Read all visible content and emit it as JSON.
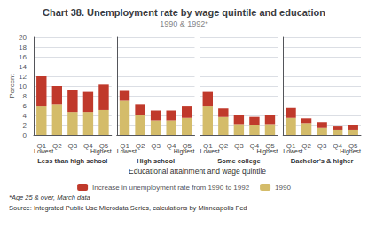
{
  "title": "Chart 38. Unemployment rate by wage quintile and education",
  "subtitle": "1990 & 1992*",
  "xlabel": "Educational attainment and wage quintile",
  "ylabel": "Percent",
  "legend": "bottom",
  "annotations": [
    "*Age 25 & over, March data",
    "Source: Integrated Public Use Microdata Series, calculations by Minneapolis Fed"
  ],
  "chart_data": [
    {
      "type": "bar",
      "stacked": true,
      "title": "Less than high school",
      "categories": [
        "Q1",
        "Q2",
        "Q3",
        "Q4",
        "Q5"
      ],
      "series": [
        {
          "name": "1990",
          "color": "#d4bc6a",
          "values": [
            5.8,
            6.3,
            4.7,
            4.7,
            5.1
          ]
        },
        {
          "name": "Increase in unemployment rate from 1990 to 1992",
          "color": "#c0392b",
          "values": [
            6.2,
            3.7,
            4.5,
            4.1,
            5.2
          ]
        }
      ],
      "ylim": [
        0,
        20
      ],
      "yticks": [
        0,
        2,
        4,
        6,
        8,
        10,
        12,
        14,
        16,
        18,
        20
      ],
      "grid": true,
      "annotations": [
        "Lowest",
        "Highest"
      ]
    },
    {
      "type": "bar",
      "stacked": true,
      "title": "High school",
      "categories": [
        "Q1",
        "Q2",
        "Q3",
        "Q4",
        "Q5"
      ],
      "series": [
        {
          "name": "1990",
          "color": "#d4bc6a",
          "values": [
            7.0,
            4.0,
            3.0,
            3.0,
            3.5
          ]
        },
        {
          "name": "Increase in unemployment rate from 1990 to 1992",
          "color": "#c0392b",
          "values": [
            2.0,
            2.3,
            2.0,
            2.0,
            2.3
          ]
        }
      ],
      "ylim": [
        0,
        20
      ],
      "yticks": [
        0,
        2,
        4,
        6,
        8,
        10,
        12,
        14,
        16,
        18,
        20
      ],
      "grid": true,
      "annotations": [
        "Lowest",
        "Highest"
      ]
    },
    {
      "type": "bar",
      "stacked": true,
      "title": "Some college",
      "categories": [
        "Q1",
        "Q2",
        "Q3",
        "Q4",
        "Q5"
      ],
      "series": [
        {
          "name": "1990",
          "color": "#d4bc6a",
          "values": [
            5.8,
            3.7,
            2.1,
            2.0,
            2.1
          ]
        },
        {
          "name": "Increase in unemployment rate from 1990 to 1992",
          "color": "#c0392b",
          "values": [
            3.0,
            1.7,
            1.9,
            1.7,
            1.9
          ]
        }
      ],
      "ylim": [
        0,
        20
      ],
      "yticks": [
        0,
        2,
        4,
        6,
        8,
        10,
        12,
        14,
        16,
        18,
        20
      ],
      "grid": true,
      "annotations": [
        "Lowest",
        "Highest"
      ]
    },
    {
      "type": "bar",
      "stacked": true,
      "title": "Bachelor's & higher",
      "categories": [
        "Q1",
        "Q2",
        "Q3",
        "Q4",
        "Q5"
      ],
      "series": [
        {
          "name": "1990",
          "color": "#d4bc6a",
          "values": [
            3.5,
            2.3,
            1.5,
            1.1,
            1.1
          ]
        },
        {
          "name": "Increase in unemployment rate from 1990 to 1992",
          "color": "#c0392b",
          "values": [
            2.0,
            1.1,
            1.0,
            0.7,
            0.9
          ]
        }
      ],
      "ylim": [
        0,
        20
      ],
      "yticks": [
        0,
        2,
        4,
        6,
        8,
        10,
        12,
        14,
        16,
        18,
        20
      ],
      "grid": true,
      "annotations": [
        "Lowest",
        "Highest"
      ]
    }
  ]
}
